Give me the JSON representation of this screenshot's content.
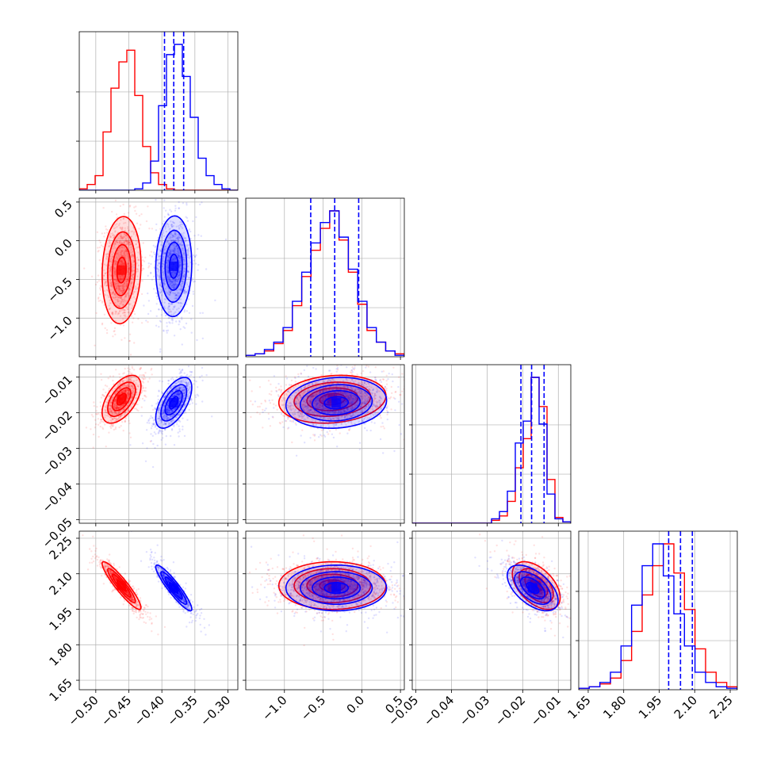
{
  "chart_data": {
    "type": "scatter",
    "title": "",
    "colors": {
      "red": "#ff0000",
      "blue": "#0000ff",
      "grid": "#b0b0b0"
    },
    "params": [
      {
        "key": "p0",
        "range": [
          -0.525,
          -0.285
        ],
        "ticks": [
          -0.5,
          -0.45,
          -0.4,
          -0.35,
          -0.3
        ],
        "tick_labels": [
          "−0.50",
          "−0.45",
          "−0.40",
          "−0.35",
          "−0.30"
        ]
      },
      {
        "key": "p1",
        "range": [
          -1.5,
          0.55
        ],
        "ticks": [
          -1.0,
          -0.5,
          0.0,
          0.5
        ],
        "tick_labels": [
          "−1.0",
          "−0.5",
          "0.0",
          "0.5"
        ]
      },
      {
        "key": "p2",
        "range": [
          -0.051,
          -0.0065
        ],
        "ticks": [
          -0.05,
          -0.04,
          -0.03,
          -0.02,
          -0.01
        ],
        "tick_labels": [
          "−0.05",
          "−0.04",
          "−0.03",
          "−0.02",
          "−0.01"
        ]
      },
      {
        "key": "p3",
        "range": [
          1.61,
          2.28
        ],
        "ticks": [
          1.65,
          1.8,
          1.95,
          2.1,
          2.25
        ],
        "tick_labels": [
          "1.65",
          "1.80",
          "1.95",
          "2.10",
          "2.25"
        ]
      }
    ],
    "series": [
      {
        "name": "",
        "color": "#ff0000",
        "mean": [
          -0.461,
          -0.38,
          -0.0162,
          2.05
        ],
        "sd": [
          0.014,
          0.33,
          0.0032,
          0.048
        ],
        "corr": [
          [
            0,
            1,
            0.1
          ],
          [
            0,
            2,
            0.55
          ],
          [
            0,
            3,
            -0.92
          ],
          [
            1,
            2,
            0.15
          ],
          [
            1,
            3,
            0.0
          ],
          [
            2,
            3,
            -0.5
          ]
        ]
      },
      {
        "name": "",
        "color": "#0000ff",
        "mean": [
          -0.382,
          -0.33,
          -0.0172,
          2.04
        ],
        "sd": [
          0.013,
          0.31,
          0.0034,
          0.046
        ],
        "corr": [
          [
            0,
            1,
            0.05
          ],
          [
            0,
            2,
            0.6
          ],
          [
            0,
            3,
            -0.92
          ],
          [
            1,
            2,
            0.1
          ],
          [
            1,
            3,
            0.0
          ],
          [
            2,
            3,
            -0.55
          ]
        ]
      }
    ],
    "quantile_lines": {
      "color": "#0000ff",
      "values": [
        [
          -0.396,
          -0.382,
          -0.367
        ],
        [
          -0.66,
          -0.35,
          -0.04
        ],
        [
          -0.0205,
          -0.0175,
          -0.014
        ],
        [
          1.99,
          2.04,
          2.09
        ]
      ]
    },
    "histograms": {
      "red": [
        [
          1,
          4,
          10,
          40,
          70,
          88,
          96,
          65,
          30,
          12,
          4,
          1,
          0,
          0,
          0,
          0,
          0,
          0,
          0,
          0
        ],
        [
          1,
          2,
          4,
          9,
          18,
          35,
          55,
          73,
          88,
          100,
          80,
          58,
          36,
          18,
          10,
          4,
          2
        ],
        [
          0,
          0,
          0,
          0,
          0,
          0,
          0,
          0,
          0,
          0,
          2,
          5,
          15,
          38,
          58,
          100,
          80,
          30,
          4,
          1
        ],
        [
          1,
          2,
          4,
          8,
          20,
          40,
          65,
          85,
          100,
          80,
          55,
          28,
          12,
          5,
          2
        ]
      ],
      "blue": [
        [
          0,
          0,
          0,
          0,
          0,
          0,
          0,
          1,
          5,
          20,
          58,
          93,
          100,
          78,
          50,
          22,
          10,
          4,
          1,
          0
        ],
        [
          1,
          2,
          5,
          10,
          20,
          38,
          58,
          78,
          92,
          100,
          82,
          60,
          38,
          20,
          10,
          4,
          1
        ],
        [
          0,
          0,
          0,
          0,
          0,
          0,
          0,
          0,
          0,
          0,
          3,
          8,
          22,
          55,
          70,
          100,
          68,
          20,
          3,
          1
        ],
        [
          1,
          2,
          5,
          12,
          30,
          58,
          85,
          100,
          78,
          52,
          30,
          12,
          5,
          2,
          1
        ]
      ]
    }
  }
}
